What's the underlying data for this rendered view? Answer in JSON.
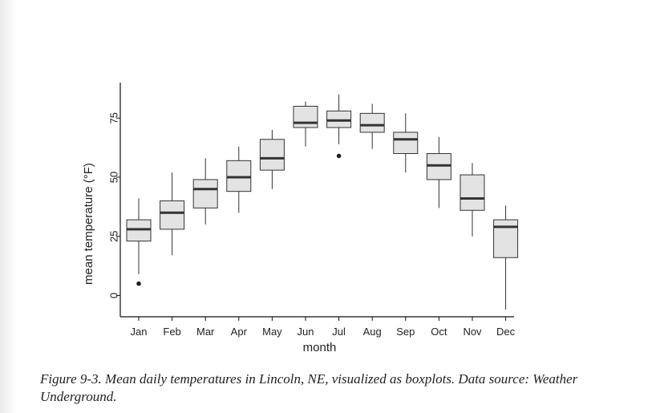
{
  "chart_data": {
    "type": "boxplot",
    "xlabel": "month",
    "ylabel": "mean temperature (°F)",
    "categories": [
      "Jan",
      "Feb",
      "Mar",
      "Apr",
      "May",
      "Jun",
      "Jul",
      "Aug",
      "Sep",
      "Oct",
      "Nov",
      "Dec"
    ],
    "yticks": [
      0,
      25,
      50,
      75
    ],
    "ylim": [
      -9,
      90
    ],
    "grid": false,
    "boxes": [
      {
        "month": "Jan",
        "whisker_low": 9,
        "q1": 23,
        "median": 28,
        "q3": 32,
        "whisker_high": 41,
        "outliers": [
          5
        ]
      },
      {
        "month": "Feb",
        "whisker_low": 17,
        "q1": 28,
        "median": 35,
        "q3": 40,
        "whisker_high": 52,
        "outliers": []
      },
      {
        "month": "Mar",
        "whisker_low": 30,
        "q1": 37,
        "median": 45,
        "q3": 49,
        "whisker_high": 58,
        "outliers": []
      },
      {
        "month": "Apr",
        "whisker_low": 35,
        "q1": 44,
        "median": 50,
        "q3": 57,
        "whisker_high": 63,
        "outliers": []
      },
      {
        "month": "May",
        "whisker_low": 45,
        "q1": 53,
        "median": 58,
        "q3": 66,
        "whisker_high": 70,
        "outliers": []
      },
      {
        "month": "Jun",
        "whisker_low": 63,
        "q1": 71,
        "median": 73,
        "q3": 80,
        "whisker_high": 82,
        "outliers": []
      },
      {
        "month": "Jul",
        "whisker_low": 64,
        "q1": 71,
        "median": 74,
        "q3": 78,
        "whisker_high": 85,
        "outliers": [
          59
        ]
      },
      {
        "month": "Aug",
        "whisker_low": 62,
        "q1": 69,
        "median": 72,
        "q3": 77,
        "whisker_high": 81,
        "outliers": []
      },
      {
        "month": "Sep",
        "whisker_low": 52,
        "q1": 60,
        "median": 66,
        "q3": 69,
        "whisker_high": 77,
        "outliers": []
      },
      {
        "month": "Oct",
        "whisker_low": 37,
        "q1": 49,
        "median": 55,
        "q3": 60,
        "whisker_high": 67,
        "outliers": []
      },
      {
        "month": "Nov",
        "whisker_low": 25,
        "q1": 36,
        "median": 41,
        "q3": 51,
        "whisker_high": 56,
        "outliers": []
      },
      {
        "month": "Dec",
        "whisker_low": -6,
        "q1": 16,
        "median": 29,
        "q3": 32,
        "whisker_high": 38,
        "outliers": []
      }
    ],
    "colors": {
      "box_fill": "#e3e3e3",
      "box_stroke": "#333333",
      "median": "#333333",
      "axis": "#111111"
    }
  },
  "caption": "Figure 9-3. Mean daily temperatures in Lincoln, NE, visualized as boxplots. Data source: Weather Underground."
}
